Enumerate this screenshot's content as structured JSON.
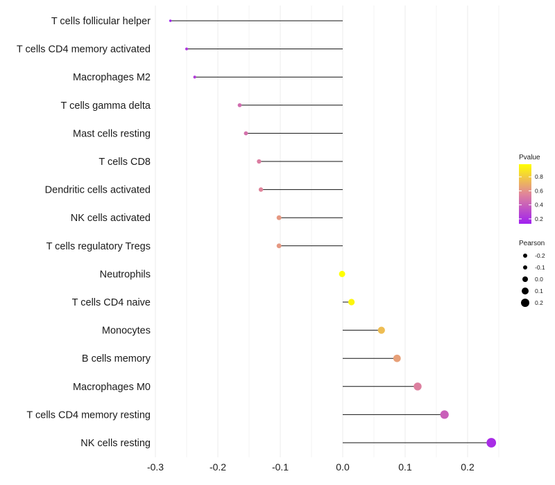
{
  "chart_data": {
    "type": "lollipop",
    "title": "",
    "xlabel": "",
    "ylabel": "",
    "xlim": [
      -0.31,
      0.245
    ],
    "xticks": [
      -0.3,
      -0.2,
      -0.1,
      0.0,
      0.1,
      0.2
    ],
    "xtick_labels": [
      "-0.3",
      "-0.2",
      "-0.1",
      "0.0",
      "0.1",
      "0.2"
    ],
    "grid": true,
    "categories": [
      "T cells follicular helper",
      "T cells CD4 memory activated",
      "Macrophages M2",
      "T cells gamma delta",
      "Mast cells resting",
      "T cells CD8",
      "Dendritic cells activated",
      "NK cells activated",
      "T cells regulatory  Tregs ",
      "Neutrophils",
      "T cells CD4 naive",
      "Monocytes",
      "B cells memory",
      "Macrophages M0",
      "T cells CD4 memory resting",
      "NK cells resting"
    ],
    "pearson": [
      -0.276,
      -0.25,
      -0.237,
      -0.165,
      -0.155,
      -0.134,
      -0.131,
      -0.102,
      -0.102,
      -0.001,
      0.014,
      0.062,
      0.087,
      0.12,
      0.163,
      0.238
    ],
    "pvalue": [
      0.13,
      0.22,
      0.25,
      0.45,
      0.47,
      0.52,
      0.55,
      0.62,
      0.62,
      0.98,
      0.95,
      0.75,
      0.65,
      0.53,
      0.4,
      0.18
    ],
    "color_legend": {
      "title": "Pvalue",
      "ticks": [
        0.2,
        0.4,
        0.6,
        0.8
      ],
      "tick_labels": [
        "0.2",
        "0.4",
        "0.6",
        "0.8"
      ],
      "range": [
        0.13,
        0.98
      ],
      "color_low": "#a020f0",
      "color_high": "#ffff00"
    },
    "size_legend": {
      "title": "Pearson",
      "values": [
        -0.2,
        -0.1,
        0.0,
        0.1,
        0.2
      ],
      "labels": [
        "-0.2",
        "-0.1",
        "0.0",
        "0.1",
        "0.2"
      ]
    },
    "legend_position": "right"
  }
}
